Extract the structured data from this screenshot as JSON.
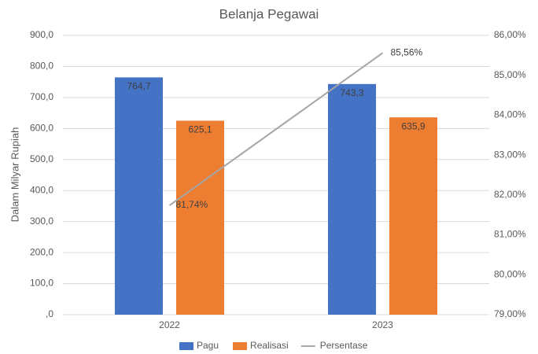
{
  "chart_data": {
    "type": "bar",
    "title": "Belanja Pegawai",
    "y_label": "Dalam Milyar Rupiah",
    "categories": [
      "2022",
      "2023"
    ],
    "series": [
      {
        "name": "Pagu",
        "color": "#4472c4",
        "values": [
          764.7,
          743.3
        ],
        "value_labels": [
          "764,7",
          "743,3"
        ]
      },
      {
        "name": "Realisasi",
        "color": "#ed7d31",
        "values": [
          625.1,
          635.9
        ],
        "value_labels": [
          "625,1",
          "635,9"
        ]
      },
      {
        "name": "Persentase",
        "color": "#a5a5a5",
        "type": "line",
        "axis": "y2",
        "values": [
          81.74,
          85.56
        ],
        "value_labels": [
          "81,74%",
          "85,56%"
        ]
      }
    ],
    "ylim": [
      0,
      900
    ],
    "yticks": [
      {
        "value": 0,
        "label": ",0"
      },
      {
        "value": 100,
        "label": "100,0"
      },
      {
        "value": 200,
        "label": "200,0"
      },
      {
        "value": 300,
        "label": "300,0"
      },
      {
        "value": 400,
        "label": "400,0"
      },
      {
        "value": 500,
        "label": "500,0"
      },
      {
        "value": 600,
        "label": "600,0"
      },
      {
        "value": 700,
        "label": "700,0"
      },
      {
        "value": 800,
        "label": "800,0"
      },
      {
        "value": 900,
        "label": "900,0"
      }
    ],
    "y2lim": [
      79,
      86
    ],
    "y2ticks": [
      {
        "value": 79,
        "label": "79,00%"
      },
      {
        "value": 80,
        "label": "80,00%"
      },
      {
        "value": 81,
        "label": "81,00%"
      },
      {
        "value": 82,
        "label": "82,00%"
      },
      {
        "value": 83,
        "label": "83,00%"
      },
      {
        "value": 84,
        "label": "84,00%"
      },
      {
        "value": 85,
        "label": "85,00%"
      },
      {
        "value": 86,
        "label": "86,00%"
      }
    ],
    "grid": true,
    "legend": "bottom"
  }
}
